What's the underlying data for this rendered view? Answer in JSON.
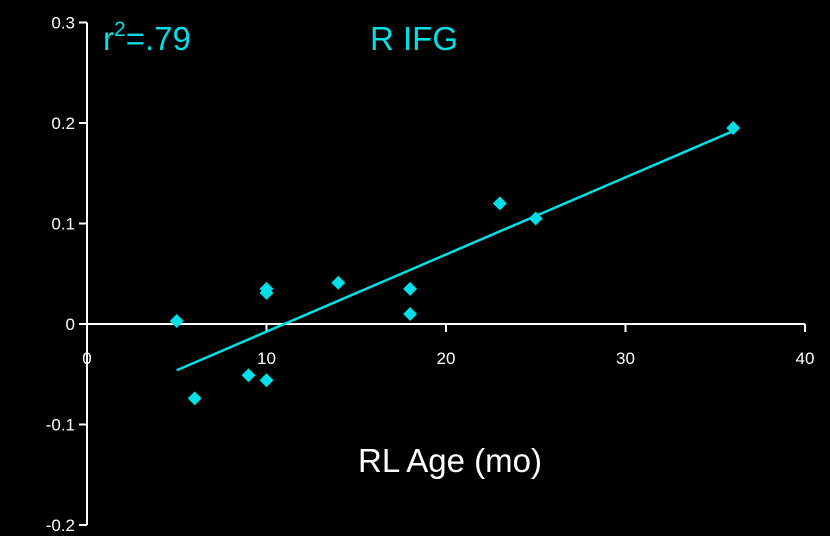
{
  "chart_data": {
    "type": "scatter",
    "title": "R IFG",
    "annotation": {
      "r_label": "r",
      "r_sup": "2",
      "r_value": "=.79"
    },
    "xlabel": "RL Age (mo)",
    "ylabel": "",
    "xlim": [
      0,
      40
    ],
    "ylim": [
      -0.2,
      0.3
    ],
    "x_ticks": [
      0,
      10,
      20,
      30,
      40
    ],
    "x_tick_labels": [
      "0",
      "10",
      "20",
      "30",
      "40"
    ],
    "y_ticks": [
      0.3,
      0.2,
      0.1,
      0,
      -0.1,
      -0.2
    ],
    "y_tick_labels": [
      "0.3",
      "0.2",
      "0.1",
      "0",
      "-0.1",
      "-0.2"
    ],
    "grid": false,
    "legend": "none",
    "colors": {
      "background": "#000000",
      "axis": "#ffffff",
      "series": "#00e0e6"
    },
    "series": [
      {
        "points": [
          {
            "x": 5,
            "y": 0.003
          },
          {
            "x": 6,
            "y": -0.074
          },
          {
            "x": 9,
            "y": -0.051
          },
          {
            "x": 10,
            "y": -0.056
          },
          {
            "x": 10,
            "y": 0.035
          },
          {
            "x": 10,
            "y": 0.031
          },
          {
            "x": 14,
            "y": 0.041
          },
          {
            "x": 18,
            "y": 0.035
          },
          {
            "x": 18,
            "y": 0.01
          },
          {
            "x": 23,
            "y": 0.12
          },
          {
            "x": 25,
            "y": 0.105
          },
          {
            "x": 36,
            "y": 0.195
          }
        ],
        "trendline": {
          "x1": 5,
          "y1": -0.046,
          "x2": 36,
          "y2": 0.192
        }
      }
    ]
  }
}
